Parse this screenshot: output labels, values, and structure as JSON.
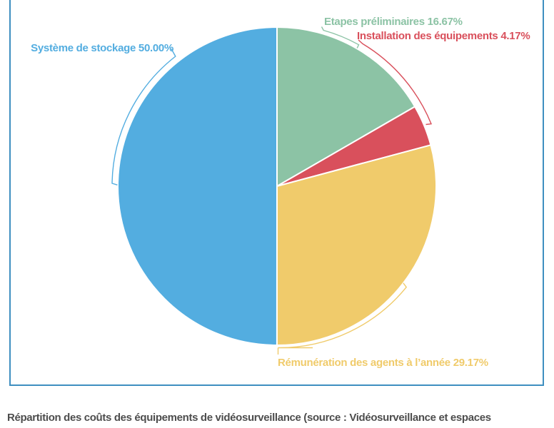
{
  "panel": {
    "border_color": "#3E8FC0"
  },
  "chart_data": {
    "type": "pie",
    "unit": "percent",
    "start_angle": "12-oclock",
    "direction": "clockwise",
    "legend_position": "outside-callout-labels",
    "slices": [
      {
        "name": "Etapes préliminaires",
        "value": 16.67,
        "display": "Etapes préliminaires 16.67%",
        "color": "#8CC3A5"
      },
      {
        "name": "Installation des équipements",
        "value": 4.17,
        "display": "Installation des équipements 4.17%",
        "color": "#D9505C"
      },
      {
        "name": "Rémunération des agents à l’année",
        "value": 29.17,
        "display": "Rémunération des agents à l’année 29.17%",
        "color": "#F0CB6B"
      },
      {
        "name": "Système de stockage",
        "value": 50.0,
        "display": "Système de stockage 50.00%",
        "color": "#53ADE0"
      }
    ]
  },
  "caption": {
    "text": "Répartition des coûts des équipements de vidéosurveillance (source : Vidéosurveillance et espaces",
    "color": "#4D4D4D"
  }
}
